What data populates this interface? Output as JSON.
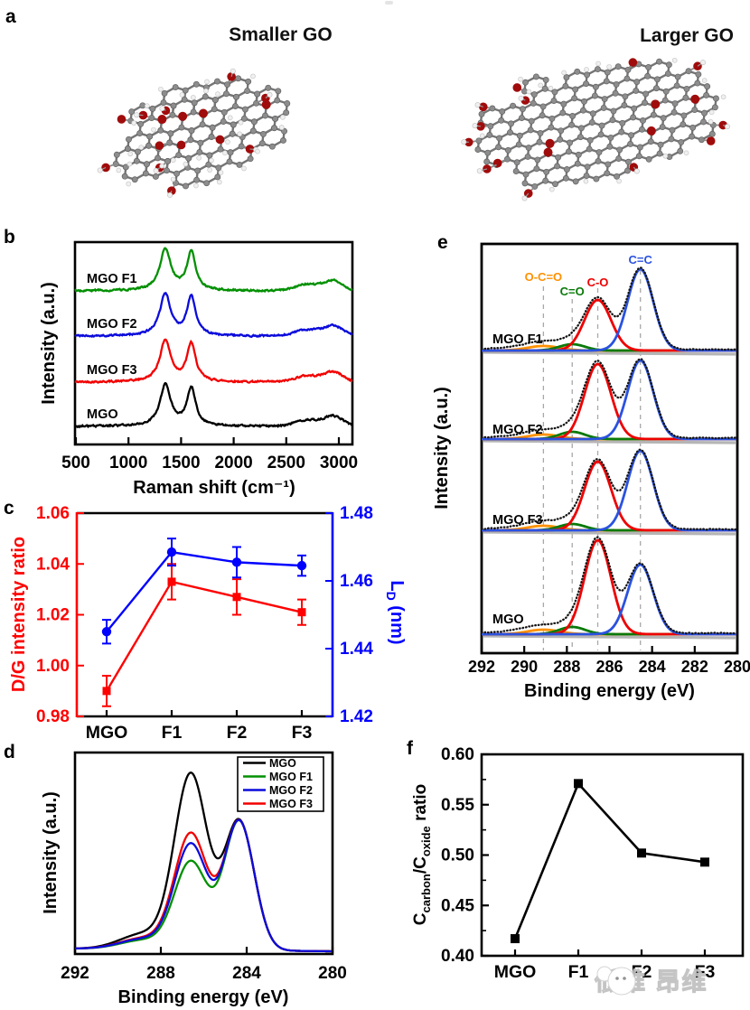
{
  "watermark": {
    "text": "低维 昂维"
  },
  "panels": {
    "a": {
      "label": "a",
      "smaller_title": "Smaller GO",
      "larger_title": "Larger GO",
      "atom_colors": {
        "carbon": "#8d8d8d",
        "oxygen": "#a00c0c",
        "hydrogen": "#f0f0f0"
      }
    },
    "b": {
      "label": "b"
    },
    "c": {
      "label": "c"
    },
    "d": {
      "label": "d"
    },
    "e": {
      "label": "e"
    },
    "f": {
      "label": "f"
    }
  },
  "chart_data": [
    {
      "id": "raman_spectra",
      "panel": "b",
      "type": "line",
      "xlabel": "Raman shift (cm⁻¹)",
      "ylabel": "Intensity (a.u.)",
      "xlim": [
        500,
        3000
      ],
      "xticks": [
        500,
        1000,
        1500,
        2000,
        2500,
        3000
      ],
      "d_band_center": 1350,
      "g_band_center": 1597,
      "series": [
        {
          "name": "MGO F1",
          "color": "#029002",
          "d_height": 1.0,
          "g_height": 0.96
        },
        {
          "name": "MGO F2",
          "color": "#0b0bdc",
          "d_height": 1.0,
          "g_height": 0.97
        },
        {
          "name": "MGO F3",
          "color": "#f20000",
          "d_height": 1.0,
          "g_height": 0.95
        },
        {
          "name": "MGO",
          "color": "#000000",
          "d_height": 0.98,
          "g_height": 0.95
        }
      ]
    },
    {
      "id": "dg_ratio_and_ld",
      "panel": "c",
      "type": "line",
      "categories": [
        "MGO",
        "F1",
        "F2",
        "F3"
      ],
      "ylabel_left": "D/G intensity ratio",
      "ylabel_right_parts": [
        {
          "t": "L"
        },
        {
          "t": "D",
          "sub": true
        },
        {
          "t": " (nm)"
        }
      ],
      "ylim_left": [
        0.98,
        1.06
      ],
      "yticks_left": [
        "0.98",
        "1.00",
        "1.02",
        "1.04",
        "1.06"
      ],
      "ylim_right": [
        1.42,
        1.48
      ],
      "yticks_right": [
        "1.42",
        "1.44",
        "1.46",
        "1.48"
      ],
      "axis_color_left": "#ff0000",
      "axis_color_right": "#0000ff",
      "series": [
        {
          "name": "D/G intensity ratio",
          "axis": "left",
          "marker": "square",
          "color": "#ff0000",
          "values": [
            0.99,
            1.033,
            1.027,
            1.021
          ],
          "errors": [
            0.006,
            0.007,
            0.007,
            0.005
          ]
        },
        {
          "name": "LD (nm)",
          "axis": "right",
          "marker": "circle",
          "color": "#0000ff",
          "values": [
            1.445,
            1.4685,
            1.4655,
            1.4645
          ],
          "errors": [
            0.0035,
            0.004,
            0.0045,
            0.003
          ]
        }
      ]
    },
    {
      "id": "xps_c1s_overlay",
      "panel": "d",
      "type": "line",
      "xlabel": "Binding energy (eV)",
      "ylabel": "Intensity (a.u.)",
      "xlim": [
        292,
        280
      ],
      "xticks": [
        292,
        288,
        284,
        280
      ],
      "peak_centers_eV": {
        "c_o": 286.6,
        "c_c": 284.35
      },
      "c_c_height": 0.74,
      "legend": [
        "MGO",
        "MGO F1",
        "MGO F2",
        "MGO F3"
      ],
      "series": [
        {
          "name": "MGO",
          "color": "#000000",
          "c_o_height": 1.0
        },
        {
          "name": "MGO F1",
          "color": "#029002",
          "c_o_height": 0.5
        },
        {
          "name": "MGO F2",
          "color": "#0b0bdc",
          "c_o_height": 0.6
        },
        {
          "name": "MGO F3",
          "color": "#f20000",
          "c_o_height": 0.66
        }
      ]
    },
    {
      "id": "xps_c1s_deconvolution",
      "panel": "e",
      "type": "line",
      "xlabel": "Binding energy (eV)",
      "ylabel": "Intensity (a.u.)",
      "xlim": [
        292,
        280
      ],
      "xticks": [
        292,
        290,
        288,
        286,
        284,
        282,
        280
      ],
      "components": [
        {
          "name": "O-C=O",
          "color": "#ff9000",
          "center_eV": 289.1
        },
        {
          "name": "C=O",
          "color": "#0a7a0a",
          "center_eV": 287.75
        },
        {
          "name": "C-O",
          "color": "#ee0000",
          "center_eV": 286.55
        },
        {
          "name": "C=C",
          "color": "#2a52e0",
          "center_eV": 284.55
        }
      ],
      "spectra": [
        {
          "name": "MGO F1",
          "c_o": 0.56,
          "c_c": 0.9,
          "c_o_double": 0.07,
          "o_c_o": 0.05
        },
        {
          "name": "MGO F2",
          "c_o": 0.83,
          "c_c": 0.87,
          "c_o_double": 0.08,
          "o_c_o": 0.05
        },
        {
          "name": "MGO F3",
          "c_o": 0.76,
          "c_c": 0.88,
          "c_o_double": 0.07,
          "o_c_o": 0.05
        },
        {
          "name": "MGO",
          "c_o": 1.04,
          "c_c": 0.77,
          "c_o_double": 0.08,
          "o_c_o": 0.05
        }
      ]
    },
    {
      "id": "carbon_oxide_ratio",
      "panel": "f",
      "type": "line",
      "categories": [
        "MGO",
        "F1",
        "F2",
        "F3"
      ],
      "ylabel_parts": [
        {
          "t": "C"
        },
        {
          "t": "carbon",
          "sub": true
        },
        {
          "t": "/C"
        },
        {
          "t": "oxide",
          "sub": true
        },
        {
          "t": " ratio"
        }
      ],
      "ylim": [
        0.4,
        0.6
      ],
      "yticks": [
        "0.40",
        "0.45",
        "0.50",
        "0.55",
        "0.60"
      ],
      "values": [
        0.417,
        0.571,
        0.502,
        0.493
      ],
      "color": "#000000",
      "marker": "square"
    }
  ]
}
